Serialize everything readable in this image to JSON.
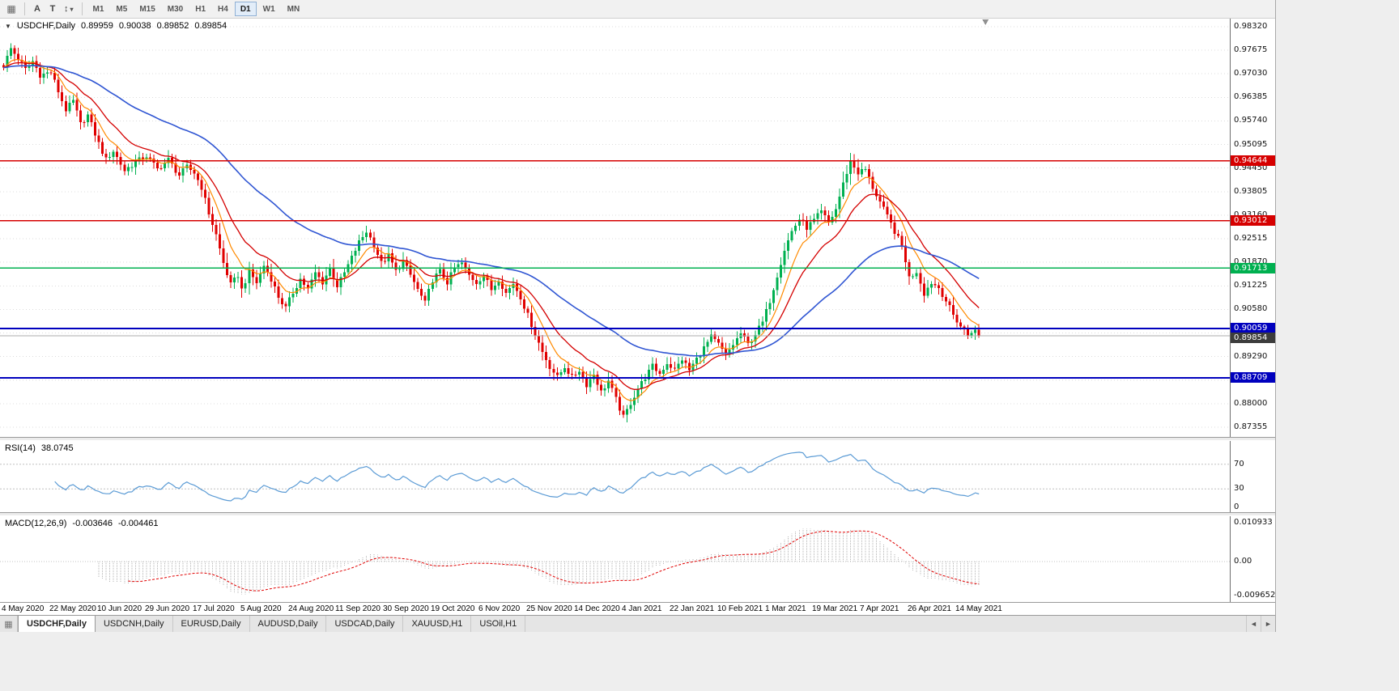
{
  "toolbar": {
    "icons": {
      "grid": "▦",
      "arrows": "↕",
      "caret": "▾",
      "chart_dropdown": "▼",
      "tab_windows": "▦",
      "scroll_left": "◄",
      "scroll_right": "►",
      "shift_marker_color": "#909090"
    },
    "text_tool": "A",
    "textbox_tool": "T",
    "timeframes": [
      {
        "label": "M1",
        "active": false
      },
      {
        "label": "M5",
        "active": false
      },
      {
        "label": "M15",
        "active": false
      },
      {
        "label": "M30",
        "active": false
      },
      {
        "label": "H1",
        "active": false
      },
      {
        "label": "H4",
        "active": false
      },
      {
        "label": "D1",
        "active": true
      },
      {
        "label": "W1",
        "active": false
      },
      {
        "label": "MN",
        "active": false
      }
    ]
  },
  "chart": {
    "title": "USDCHF,Daily",
    "open": "0.89959",
    "high": "0.90038",
    "low": "0.89852",
    "close": "0.89854"
  },
  "rsi": {
    "label": "RSI(14)",
    "value": "38.0745",
    "scale_labels": [
      "70",
      "30",
      "0"
    ]
  },
  "macd": {
    "label": "MACD(12,26,9)",
    "value_main": "-0.003646",
    "value_signal": "-0.004461",
    "scale_labels": {
      "top": "0.010933",
      "zero": "0.00",
      "bottom": "-0.009652"
    }
  },
  "tabs": {
    "items": [
      {
        "label": "USDCHF,Daily",
        "active": true
      },
      {
        "label": "USDCNH,Daily",
        "active": false
      },
      {
        "label": "EURUSD,Daily",
        "active": false
      },
      {
        "label": "AUDUSD,Daily",
        "active": false
      },
      {
        "label": "USDCAD,Daily",
        "active": false
      },
      {
        "label": "XAUUSD,H1",
        "active": false
      },
      {
        "label": "USOil,H1",
        "active": false
      }
    ],
    "scroll_left": "◄",
    "scroll_right": "►"
  },
  "chart_data": {
    "type": "candlestick",
    "symbol": "USDCHF",
    "timeframe": "Daily",
    "price_axis": {
      "min": 0.87355,
      "max": 0.9832,
      "step": 0.00645,
      "decimals": 5
    },
    "plot": {
      "candle_count": 267,
      "candle_step": 4.53,
      "left_pad": 2,
      "x_tick_stride": 13
    },
    "x_tick_labels": [
      "4 May 2020",
      "22 May 2020",
      "10 Jun 2020",
      "29 Jun 2020",
      "17 Jul 2020",
      "5 Aug 2020",
      "24 Aug 2020",
      "11 Sep 2020",
      "30 Sep 2020",
      "19 Oct 2020",
      "6 Nov 2020",
      "25 Nov 2020",
      "14 Dec 2020",
      "4 Jan 2021",
      "22 Jan 2021",
      "10 Feb 2021",
      "1 Mar 2021",
      "19 Mar 2021",
      "7 Apr 2021",
      "26 Apr 2021",
      "14 May 2021"
    ],
    "horizontal_lines": [
      {
        "price": 0.94644,
        "label": "0.94644",
        "color": "#d60000",
        "width": 1.4
      },
      {
        "price": 0.93012,
        "label": "0.93012",
        "color": "#d60000",
        "width": 1.4
      },
      {
        "price": 0.91713,
        "label": "0.91713",
        "color": "#00b050",
        "width": 1.4
      },
      {
        "price": 0.90059,
        "label": "0.90059",
        "color": "#0000bE",
        "width": 2
      },
      {
        "price": 0.88709,
        "label": "0.88709",
        "color": "#0000bE",
        "width": 2
      }
    ],
    "current_price": {
      "price": 0.89854,
      "label": "0.89854",
      "color": "#3c3c3c"
    },
    "colors": {
      "up": "#00b050",
      "down": "#e00000",
      "ma_fast": "#ff8a00",
      "ma_mid": "#d40000",
      "ma_slow": "#3056d3",
      "rsi_line": "#5b9bd5",
      "level_line": "#c0c0c0",
      "macd_hist": "#b4b4b4",
      "macd_signal": "#e00000",
      "grid": "#dcdcdc"
    },
    "ma_periods": {
      "fast": 8,
      "mid": 17,
      "slow": 55
    },
    "rsi_scale_values": [
      70,
      30,
      0
    ],
    "rsi_levels": [
      70,
      30
    ],
    "macd_scale": {
      "max": 0.010933,
      "zero": 0.0,
      "min": -0.009652
    },
    "close_anchors": [
      [
        0,
        0.9725
      ],
      [
        2,
        0.9772
      ],
      [
        4,
        0.9745
      ],
      [
        6,
        0.9715
      ],
      [
        8,
        0.9738
      ],
      [
        10,
        0.97
      ],
      [
        13,
        0.9707
      ],
      [
        15,
        0.9655
      ],
      [
        17,
        0.9605
      ],
      [
        19,
        0.9628
      ],
      [
        21,
        0.9565
      ],
      [
        23,
        0.959
      ],
      [
        26,
        0.9512
      ],
      [
        28,
        0.9468
      ],
      [
        30,
        0.9492
      ],
      [
        33,
        0.9438
      ],
      [
        36,
        0.9462
      ],
      [
        39,
        0.9478
      ],
      [
        42,
        0.9442
      ],
      [
        45,
        0.9468
      ],
      [
        48,
        0.9425
      ],
      [
        50,
        0.9448
      ],
      [
        52,
        0.9432
      ],
      [
        54,
        0.9392
      ],
      [
        56,
        0.9322
      ],
      [
        58,
        0.9262
      ],
      [
        60,
        0.9185
      ],
      [
        62,
        0.9125
      ],
      [
        64,
        0.9152
      ],
      [
        65,
        0.9112
      ],
      [
        67,
        0.916
      ],
      [
        69,
        0.9132
      ],
      [
        71,
        0.9178
      ],
      [
        73,
        0.9142
      ],
      [
        75,
        0.9092
      ],
      [
        77,
        0.9062
      ],
      [
        79,
        0.9105
      ],
      [
        81,
        0.9142
      ],
      [
        83,
        0.9112
      ],
      [
        85,
        0.9158
      ],
      [
        87,
        0.9132
      ],
      [
        89,
        0.917
      ],
      [
        91,
        0.9122
      ],
      [
        93,
        0.9158
      ],
      [
        95,
        0.92
      ],
      [
        97,
        0.9242
      ],
      [
        99,
        0.9272
      ],
      [
        101,
        0.9235
      ],
      [
        103,
        0.9185
      ],
      [
        105,
        0.9205
      ],
      [
        107,
        0.9162
      ],
      [
        109,
        0.919
      ],
      [
        111,
        0.9152
      ],
      [
        113,
        0.9112
      ],
      [
        115,
        0.9075
      ],
      [
        117,
        0.914
      ],
      [
        119,
        0.9162
      ],
      [
        121,
        0.9132
      ],
      [
        123,
        0.9172
      ],
      [
        125,
        0.9185
      ],
      [
        127,
        0.9152
      ],
      [
        129,
        0.9132
      ],
      [
        131,
        0.9152
      ],
      [
        133,
        0.9112
      ],
      [
        135,
        0.9142
      ],
      [
        137,
        0.9102
      ],
      [
        139,
        0.913
      ],
      [
        141,
        0.9092
      ],
      [
        143,
        0.9042
      ],
      [
        145,
        0.8992
      ],
      [
        147,
        0.8942
      ],
      [
        149,
        0.8902
      ],
      [
        151,
        0.8872
      ],
      [
        153,
        0.8902
      ],
      [
        155,
        0.8872
      ],
      [
        157,
        0.8892
      ],
      [
        159,
        0.8852
      ],
      [
        161,
        0.8882
      ],
      [
        163,
        0.8832
      ],
      [
        165,
        0.8862
      ],
      [
        167,
        0.8812
      ],
      [
        169,
        0.8762
      ],
      [
        171,
        0.8802
      ],
      [
        173,
        0.8842
      ],
      [
        175,
        0.8872
      ],
      [
        177,
        0.8902
      ],
      [
        179,
        0.8882
      ],
      [
        181,
        0.8912
      ],
      [
        183,
        0.8892
      ],
      [
        185,
        0.8922
      ],
      [
        187,
        0.8892
      ],
      [
        189,
        0.8922
      ],
      [
        191,
        0.8952
      ],
      [
        193,
        0.8982
      ],
      [
        195,
        0.8962
      ],
      [
        197,
        0.8932
      ],
      [
        199,
        0.8962
      ],
      [
        201,
        0.8992
      ],
      [
        203,
        0.8962
      ],
      [
        205,
        0.8992
      ],
      [
        207,
        0.9022
      ],
      [
        209,
        0.9082
      ],
      [
        211,
        0.9152
      ],
      [
        213,
        0.9222
      ],
      [
        215,
        0.9272
      ],
      [
        217,
        0.9305
      ],
      [
        219,
        0.9282
      ],
      [
        221,
        0.9302
      ],
      [
        223,
        0.9325
      ],
      [
        225,
        0.9295
      ],
      [
        227,
        0.9332
      ],
      [
        229,
        0.9402
      ],
      [
        231,
        0.9465
      ],
      [
        233,
        0.9432
      ],
      [
        235,
        0.9442
      ],
      [
        237,
        0.9392
      ],
      [
        239,
        0.9352
      ],
      [
        241,
        0.9312
      ],
      [
        243,
        0.9272
      ],
      [
        245,
        0.9232
      ],
      [
        246,
        0.9192
      ],
      [
        247,
        0.9145
      ],
      [
        249,
        0.9162
      ],
      [
        251,
        0.9102
      ],
      [
        253,
        0.9132
      ],
      [
        255,
        0.9118
      ],
      [
        257,
        0.9082
      ],
      [
        259,
        0.9042
      ],
      [
        261,
        0.9012
      ],
      [
        263,
        0.8988
      ],
      [
        265,
        0.9002
      ],
      [
        266,
        0.89854
      ]
    ]
  }
}
